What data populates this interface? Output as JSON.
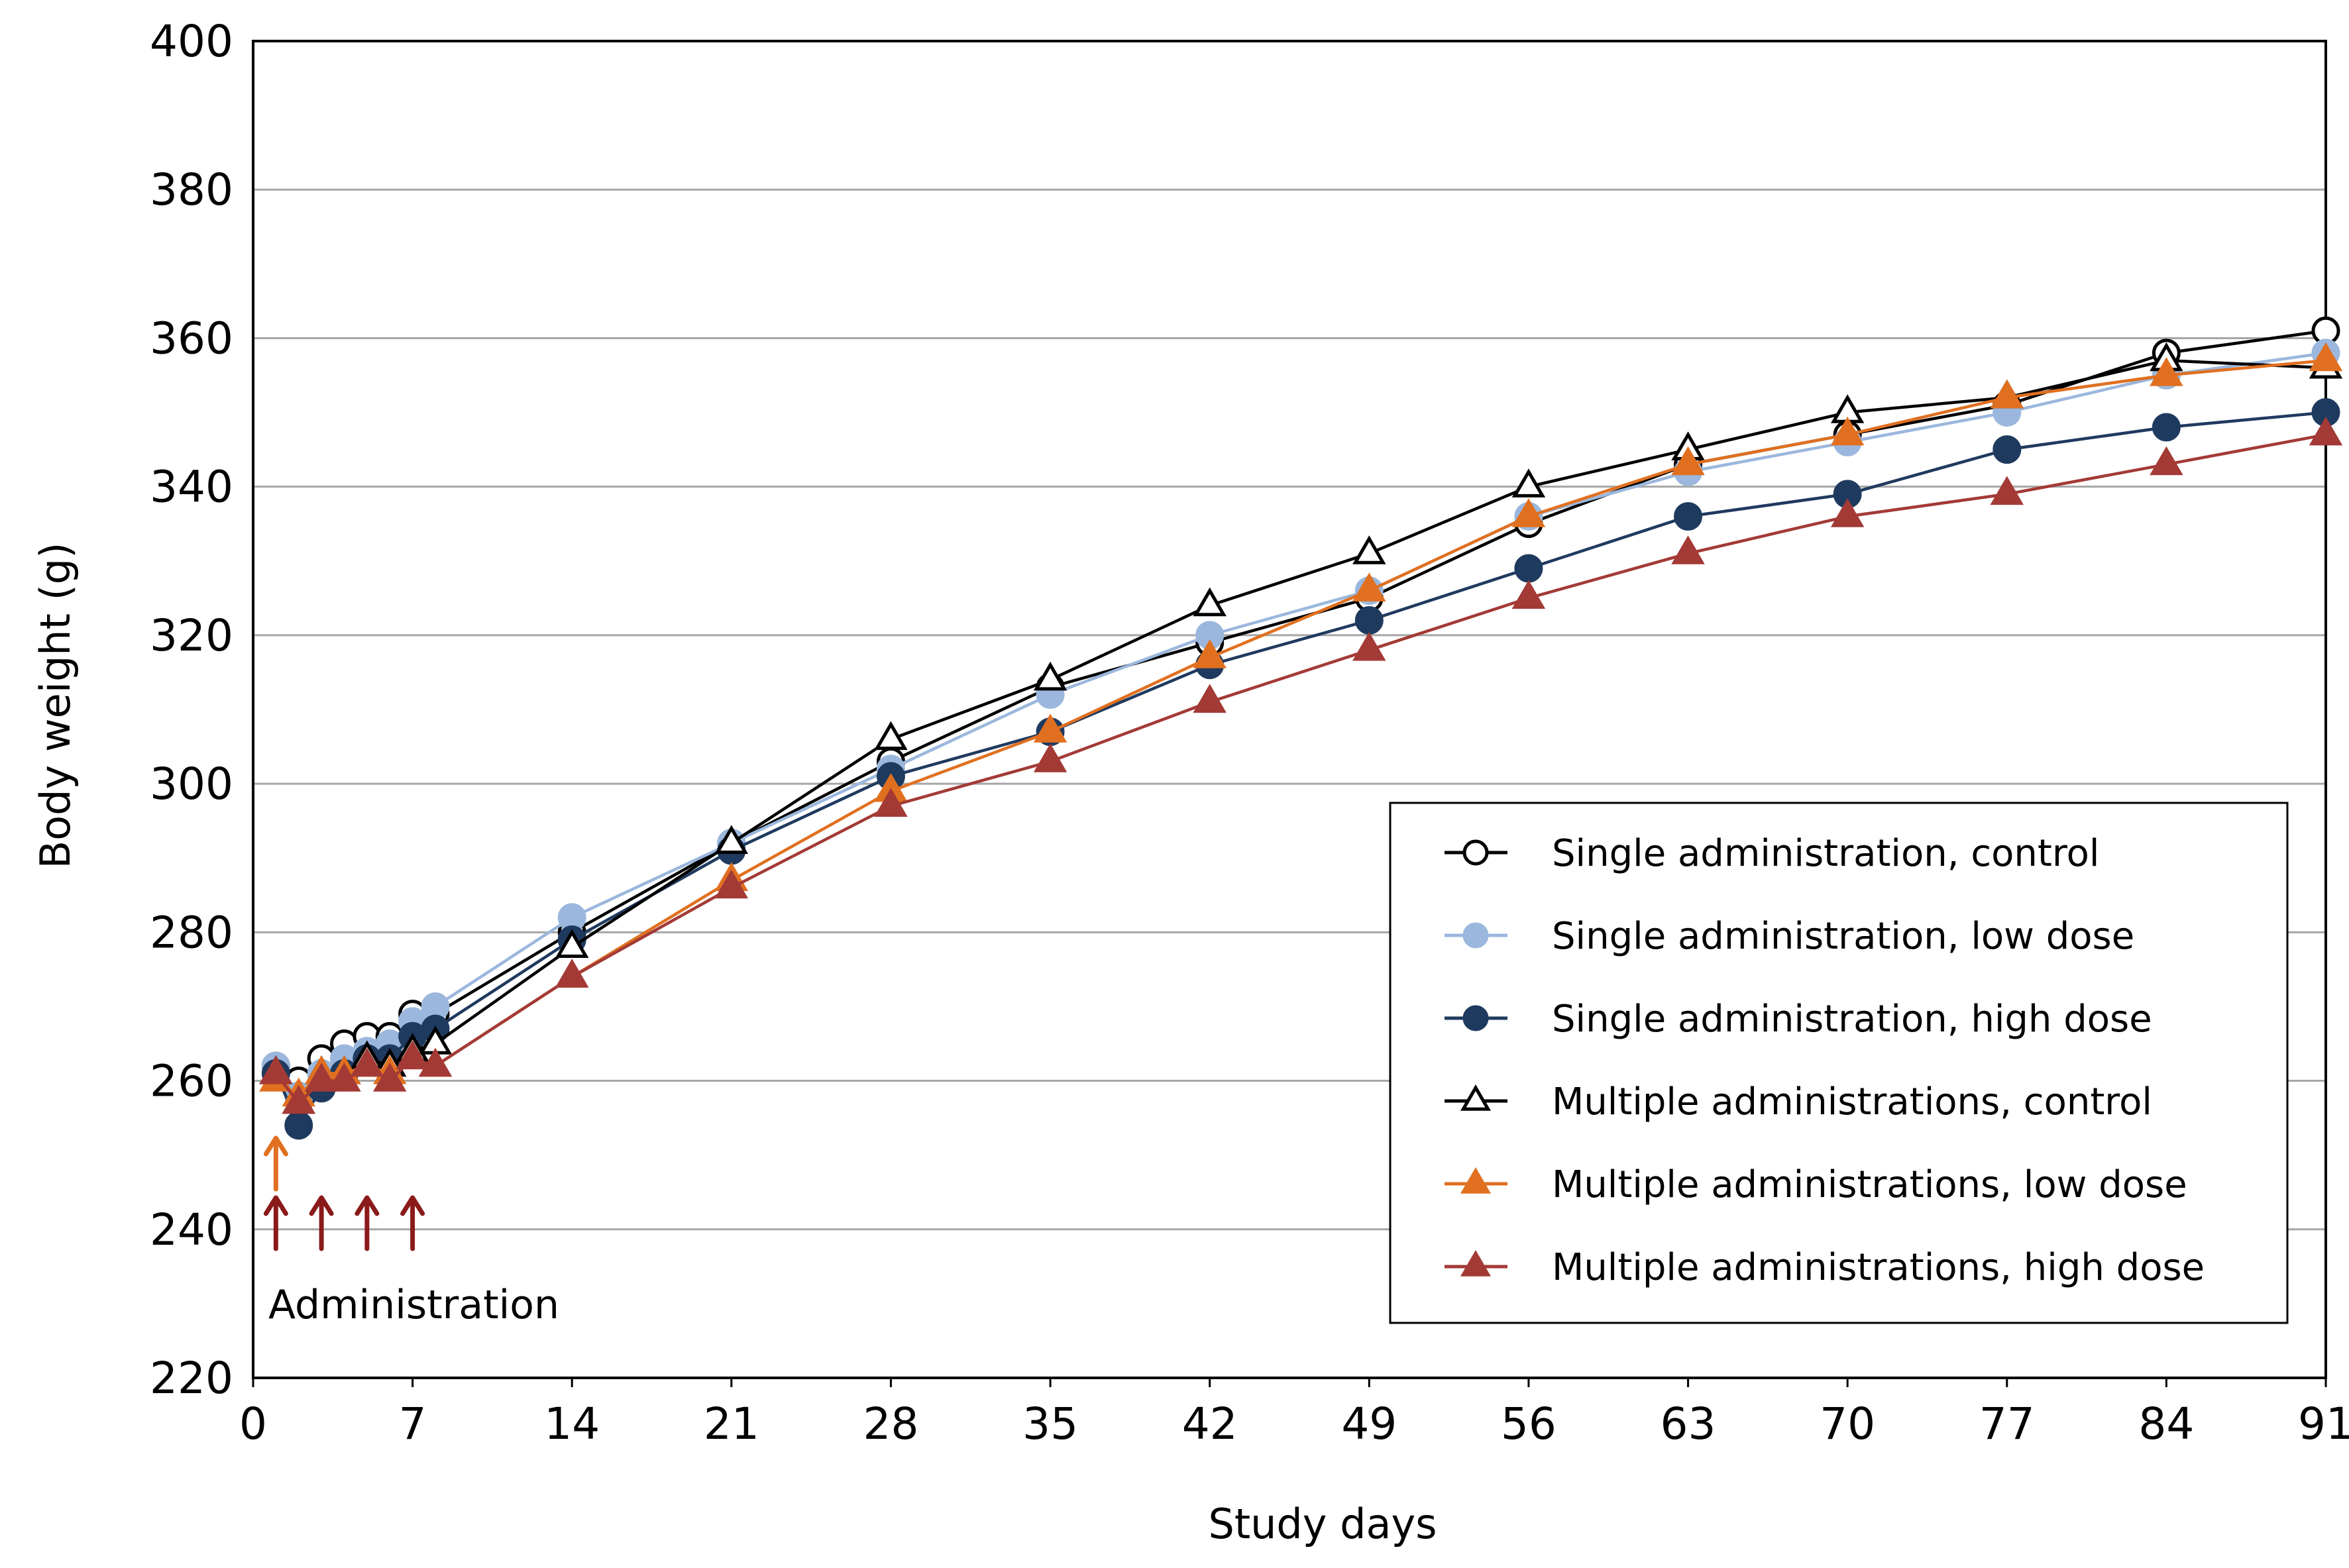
{
  "chart_data": {
    "type": "line",
    "title": "",
    "xlabel": "Study days",
    "ylabel": "Body weight (g)",
    "xlim": [
      0,
      91
    ],
    "ylim": [
      220,
      400
    ],
    "x_ticks": [
      0,
      7,
      14,
      21,
      28,
      35,
      42,
      49,
      56,
      63,
      70,
      77,
      84,
      91
    ],
    "x_tick_labels": [
      "0",
      "7",
      "14",
      "21",
      "28",
      "35",
      "42",
      "49",
      "56",
      "63",
      "70",
      "77",
      "84",
      "91"
    ],
    "y_ticks": [
      220,
      240,
      260,
      280,
      300,
      320,
      340,
      360,
      380,
      400
    ],
    "y_tick_labels": [
      "220",
      "240",
      "260",
      "280",
      "300",
      "320",
      "340",
      "360",
      "380",
      "400"
    ],
    "grid": true,
    "legend_position": "bottom-right",
    "series": [
      {
        "name": "Single administration, control",
        "marker": "circle",
        "filled": false,
        "line_color": "#000000",
        "marker_fill": "#ffffff",
        "marker_stroke": "#000000",
        "x": [
          1,
          2,
          3,
          4,
          5,
          6,
          7,
          8,
          14,
          21,
          28,
          35,
          42,
          49,
          56,
          63,
          70,
          77,
          84,
          91
        ],
        "y": [
          262,
          260,
          263,
          265,
          266,
          266,
          269,
          269,
          280,
          292,
          303,
          313,
          319,
          325,
          335,
          343,
          347,
          351,
          358,
          361
        ]
      },
      {
        "name": "Single administration, low dose",
        "marker": "circle",
        "filled": true,
        "line_color": "#9bb7dd",
        "marker_fill": "#9bb7dd",
        "marker_stroke": "#9bb7dd",
        "x": [
          1,
          2,
          3,
          4,
          5,
          6,
          7,
          8,
          14,
          21,
          28,
          35,
          42,
          49,
          56,
          63,
          70,
          77,
          84,
          91
        ],
        "y": [
          262,
          258,
          261,
          263,
          264,
          265,
          268,
          270,
          282,
          292,
          302,
          312,
          320,
          326,
          336,
          342,
          346,
          350,
          355,
          358
        ]
      },
      {
        "name": "Single administration, high dose",
        "marker": "circle",
        "filled": true,
        "line_color": "#1f3a5f",
        "marker_fill": "#1f3a5f",
        "marker_stroke": "#1f3a5f",
        "x": [
          1,
          2,
          3,
          4,
          5,
          6,
          7,
          8,
          14,
          21,
          28,
          35,
          42,
          49,
          56,
          63,
          70,
          77,
          84,
          91
        ],
        "y": [
          261,
          254,
          259,
          261,
          263,
          263,
          266,
          267,
          279,
          291,
          301,
          307,
          316,
          322,
          329,
          336,
          339,
          345,
          348,
          350
        ]
      },
      {
        "name": "Multiple administrations, control",
        "marker": "triangle",
        "filled": false,
        "line_color": "#000000",
        "marker_fill": "#ffffff",
        "marker_stroke": "#000000",
        "x": [
          1,
          2,
          3,
          4,
          5,
          6,
          7,
          8,
          14,
          21,
          28,
          35,
          42,
          49,
          56,
          63,
          70,
          77,
          84,
          91
        ],
        "y": [
          261,
          257,
          261,
          261,
          263,
          262,
          264,
          265,
          278,
          292,
          306,
          314,
          324,
          331,
          340,
          345,
          350,
          352,
          357,
          356
        ]
      },
      {
        "name": "Multiple administrations, low dose",
        "marker": "triangle",
        "filled": true,
        "line_color": "#e07020",
        "marker_fill": "#e07020",
        "marker_stroke": "#e07020",
        "x": [
          1,
          2,
          3,
          4,
          5,
          6,
          7,
          8,
          14,
          21,
          28,
          35,
          42,
          49,
          56,
          63,
          70,
          77,
          84,
          91
        ],
        "y": [
          260,
          258,
          261,
          261,
          262,
          261,
          263,
          262,
          274,
          287,
          299,
          307,
          317,
          326,
          336,
          343,
          347,
          352,
          355,
          357
        ]
      },
      {
        "name": "Multiple administrations, high dose",
        "marker": "triangle",
        "filled": true,
        "line_color": "#a33a36",
        "marker_fill": "#a33a36",
        "marker_stroke": "#a33a36",
        "x": [
          1,
          2,
          3,
          4,
          5,
          6,
          7,
          8,
          14,
          21,
          28,
          35,
          42,
          49,
          56,
          63,
          70,
          77,
          84,
          91
        ],
        "y": [
          261,
          257,
          260,
          260,
          262,
          260,
          263,
          262,
          274,
          286,
          297,
          303,
          311,
          318,
          325,
          331,
          336,
          339,
          343,
          347
        ]
      }
    ],
    "annotations": {
      "label": "Administration",
      "single_dose_days": [
        1
      ],
      "single_dose_color": "#e07020",
      "multiple_dose_days": [
        1,
        3,
        5,
        7
      ],
      "multiple_dose_color": "#8b1a1a"
    }
  }
}
